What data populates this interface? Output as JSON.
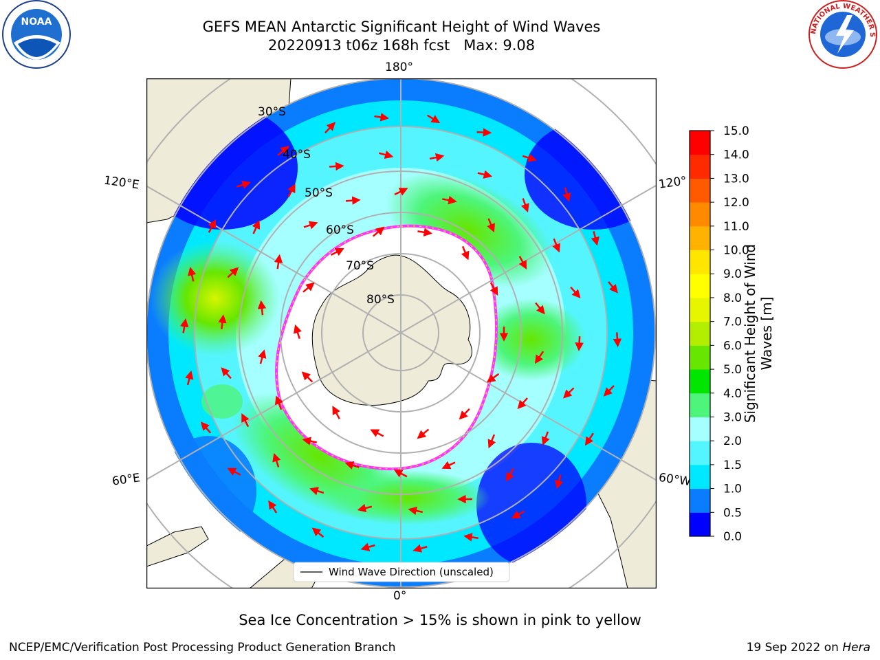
{
  "title": {
    "line1": "GEFS MEAN Antarctic Significant Height of Wind Waves",
    "line2": "20220913 t06z 168h fcst   Max: 9.08"
  },
  "map": {
    "projection": "south-polar-stereographic",
    "longitude_labels": {
      "top": "180°",
      "bottom": "0°",
      "left_upper": "120°E",
      "left_lower": "60°E",
      "right_upper": "120°",
      "right_lower": "60°W"
    },
    "latitude_labels": [
      "30°S",
      "40°S",
      "50°S",
      "60°S",
      "70°S",
      "80°S"
    ],
    "legend_label": "Wind Wave Direction (unscaled)",
    "arrow_color": "#ff0000",
    "land_color": "#efebd9",
    "ice_edge_colors": [
      "#ff33ff",
      "#ffcc33"
    ]
  },
  "colorbar": {
    "title_line1": "Significant Height of Wind",
    "title_line2": "Waves [m]",
    "ticks": [
      "0.0",
      "0.5",
      "1.0",
      "1.5",
      "2.0",
      "3.0",
      "4.0",
      "5.0",
      "6.0",
      "7.0",
      "8.0",
      "9.0",
      "10.0",
      "11.0",
      "12.0",
      "13.0",
      "14.0",
      "15.0"
    ],
    "colors": [
      "#0000ff",
      "#0a7dff",
      "#00e8ff",
      "#55f5ff",
      "#a5ffff",
      "#4df57a",
      "#00e600",
      "#66e600",
      "#b3ee00",
      "#e6f500",
      "#ffff00",
      "#ffe600",
      "#ffb300",
      "#ff8a00",
      "#ff5a00",
      "#ff2a00",
      "#ff0000"
    ]
  },
  "footer": {
    "note": "Sea Ice Concentration > 15% is shown in pink to yellow",
    "credit_left": "NCEP/EMC/Verification Post Processing Product Generation Branch",
    "credit_date": "19 Sep 2022 on",
    "credit_machine": "Hera"
  },
  "logos": {
    "left": "NOAA",
    "right": "NATIONAL WEATHER SERVICE"
  }
}
